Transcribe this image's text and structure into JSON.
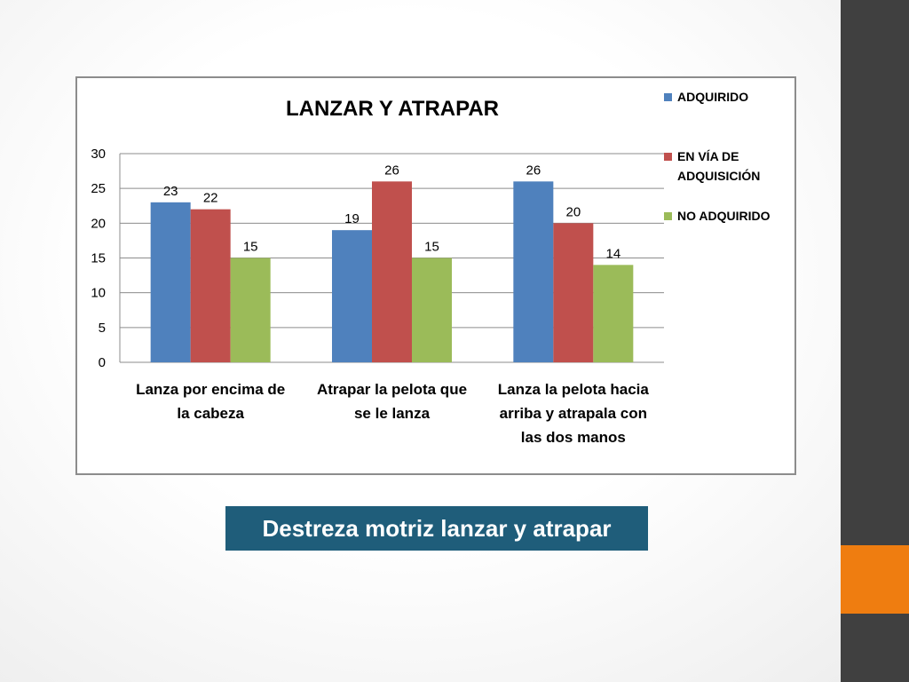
{
  "colors": {
    "background": "#ffffff",
    "side_bar": "#404040",
    "side_accent": "#ef7d10",
    "caption_bg": "#1f5d7a",
    "caption_text": "#ffffff",
    "series_adquirido": "#4f81bd",
    "series_en_via": "#c0504d",
    "series_no_adquirido": "#9bbb59"
  },
  "caption": "Destreza motriz lanzar y atrapar",
  "chart_data": {
    "type": "bar",
    "title": "LANZAR Y ATRAPAR",
    "xlabel": "",
    "ylabel": "",
    "ylim": [
      0,
      30
    ],
    "yticks": [
      0,
      5,
      10,
      15,
      20,
      25,
      30
    ],
    "grid": true,
    "legend_position": "top-right",
    "categories": [
      [
        "Lanza por encima de",
        "la cabeza"
      ],
      [
        "Atrapar la pelota que",
        "se le lanza"
      ],
      [
        "Lanza la pelota hacia",
        "arriba y atrapala con",
        "las dos manos"
      ]
    ],
    "series": [
      {
        "name": [
          "ADQUIRIDO"
        ],
        "color": "#4f81bd",
        "values": [
          23,
          19,
          26
        ]
      },
      {
        "name": [
          "EN VÍA DE",
          "ADQUISICIÓN"
        ],
        "color": "#c0504d",
        "values": [
          22,
          26,
          20
        ]
      },
      {
        "name": [
          "NO ADQUIRIDO"
        ],
        "color": "#9bbb59",
        "values": [
          15,
          15,
          14
        ]
      }
    ]
  }
}
